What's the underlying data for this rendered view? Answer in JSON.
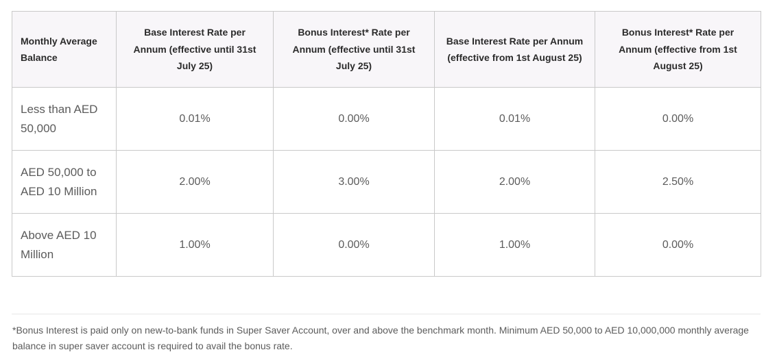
{
  "table": {
    "headers": [
      "Monthly Average Balance",
      "Base Interest Rate per Annum (effective until 31st July 25)",
      "Bonus Interest* Rate per Annum (effective until 31st July 25)",
      "Base Interest Rate per Annum (effective from 1st August 25)",
      "Bonus Interest* Rate per Annum (effective from 1st August 25)"
    ],
    "rows": [
      [
        "Less than AED 50,000",
        "0.01%",
        "0.00%",
        "0.01%",
        "0.00%"
      ],
      [
        "AED 50,000 to AED 10 Million",
        "2.00%",
        "3.00%",
        "2.00%",
        "2.50%"
      ],
      [
        "Above AED 10 Million",
        "1.00%",
        "0.00%",
        "1.00%",
        "0.00%"
      ]
    ]
  },
  "footnote": "*Bonus Interest is paid only on new-to-bank funds in Super Saver Account, over and above the benchmark month. Minimum AED 50,000 to AED 10,000,000 monthly average balance in super saver account is required to avail the bonus rate.",
  "colors": {
    "header_background": "#f8f6f9",
    "border": "#c9c9c9",
    "text": "#5b5b5b"
  }
}
